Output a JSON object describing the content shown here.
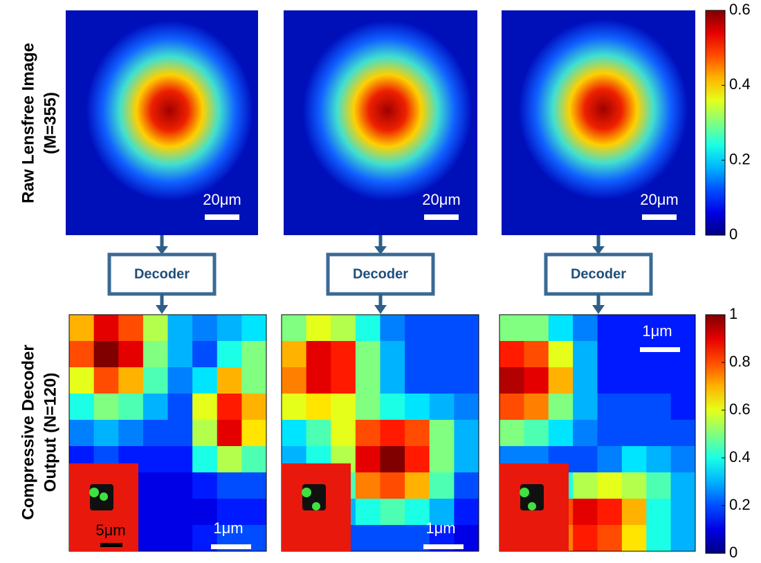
{
  "row_labels": {
    "top": [
      "Raw Lensfree Image",
      "(M=355)"
    ],
    "bottom": [
      "Compressive Decoder",
      "Output (N=120)"
    ]
  },
  "top_colorbar": {
    "lim": [
      0,
      0.6
    ],
    "ticks": [
      0,
      0.2,
      0.4,
      0.6
    ]
  },
  "bottom_colorbar": {
    "lim": [
      0,
      1
    ],
    "ticks": [
      0,
      0.2,
      0.4,
      0.6,
      0.8,
      1
    ]
  },
  "panels": [
    {
      "raw_scale": "20μm",
      "decoder": "Decoder",
      "output_scale": "1μm",
      "inset_scale": "5μm",
      "output": [
        [
          0.7,
          0.9,
          0.8,
          0.55,
          0.3,
          0.25,
          0.3,
          0.35
        ],
        [
          0.8,
          1,
          0.9,
          0.5,
          0.3,
          0.2,
          0.4,
          0.5
        ],
        [
          0.6,
          0.8,
          0.7,
          0.45,
          0.25,
          0.35,
          0.7,
          0.5
        ],
        [
          0.4,
          0.5,
          0.45,
          0.3,
          0.2,
          0.6,
          0.85,
          0.7
        ],
        [
          0.25,
          0.3,
          0.25,
          0.2,
          0.2,
          0.55,
          0.9,
          0.65
        ],
        [
          0.15,
          0.2,
          0.15,
          0.15,
          0.15,
          0.4,
          0.55,
          0.45
        ],
        [
          0.1,
          0.1,
          0.1,
          0.1,
          0.1,
          0.15,
          0.2,
          0.2
        ],
        [
          0.1,
          0.1,
          0.1,
          0.1,
          0.1,
          0.1,
          0.15,
          0.15
        ],
        [
          0.1,
          0.1,
          0.1,
          0.1,
          0.1,
          0.15,
          0.2,
          0.2
        ]
      ]
    },
    {
      "raw_scale": "20μm",
      "decoder": "Decoder",
      "output_scale": "1μm",
      "output": [
        [
          0.5,
          0.6,
          0.55,
          0.4,
          0.25,
          0.2,
          0.2,
          0.2
        ],
        [
          0.7,
          0.9,
          0.85,
          0.5,
          0.3,
          0.2,
          0.2,
          0.2
        ],
        [
          0.75,
          0.9,
          0.85,
          0.5,
          0.3,
          0.2,
          0.2,
          0.2
        ],
        [
          0.6,
          0.65,
          0.6,
          0.5,
          0.4,
          0.35,
          0.3,
          0.25
        ],
        [
          0.35,
          0.45,
          0.6,
          0.8,
          0.85,
          0.8,
          0.5,
          0.3
        ],
        [
          0.3,
          0.4,
          0.55,
          0.9,
          1,
          0.85,
          0.5,
          0.3
        ],
        [
          0.2,
          0.3,
          0.45,
          0.75,
          0.8,
          0.7,
          0.45,
          0.2
        ],
        [
          0.15,
          0.2,
          0.3,
          0.4,
          0.45,
          0.4,
          0.3,
          0.15
        ],
        [
          0.1,
          0.15,
          0.2,
          0.2,
          0.2,
          0.2,
          0.15,
          0.1
        ]
      ]
    },
    {
      "raw_scale": "20μm",
      "decoder": "Decoder",
      "output_scale": "1μm",
      "output": [
        [
          0.5,
          0.5,
          0.35,
          0.25,
          0.15,
          0.15,
          0.15,
          0.15
        ],
        [
          0.85,
          0.8,
          0.6,
          0.3,
          0.15,
          0.15,
          0.15,
          0.15
        ],
        [
          0.95,
          0.9,
          0.7,
          0.3,
          0.15,
          0.15,
          0.15,
          0.15
        ],
        [
          0.8,
          0.75,
          0.5,
          0.3,
          0.2,
          0.2,
          0.2,
          0.15
        ],
        [
          0.5,
          0.45,
          0.35,
          0.25,
          0.2,
          0.2,
          0.2,
          0.2
        ],
        [
          0.25,
          0.25,
          0.2,
          0.2,
          0.25,
          0.35,
          0.3,
          0.25
        ],
        [
          0.2,
          0.3,
          0.4,
          0.55,
          0.6,
          0.55,
          0.45,
          0.3
        ],
        [
          0.3,
          0.5,
          0.8,
          0.9,
          0.85,
          0.7,
          0.4,
          0.3
        ],
        [
          0.3,
          0.55,
          0.75,
          0.85,
          0.8,
          0.65,
          0.4,
          0.3
        ]
      ]
    }
  ]
}
